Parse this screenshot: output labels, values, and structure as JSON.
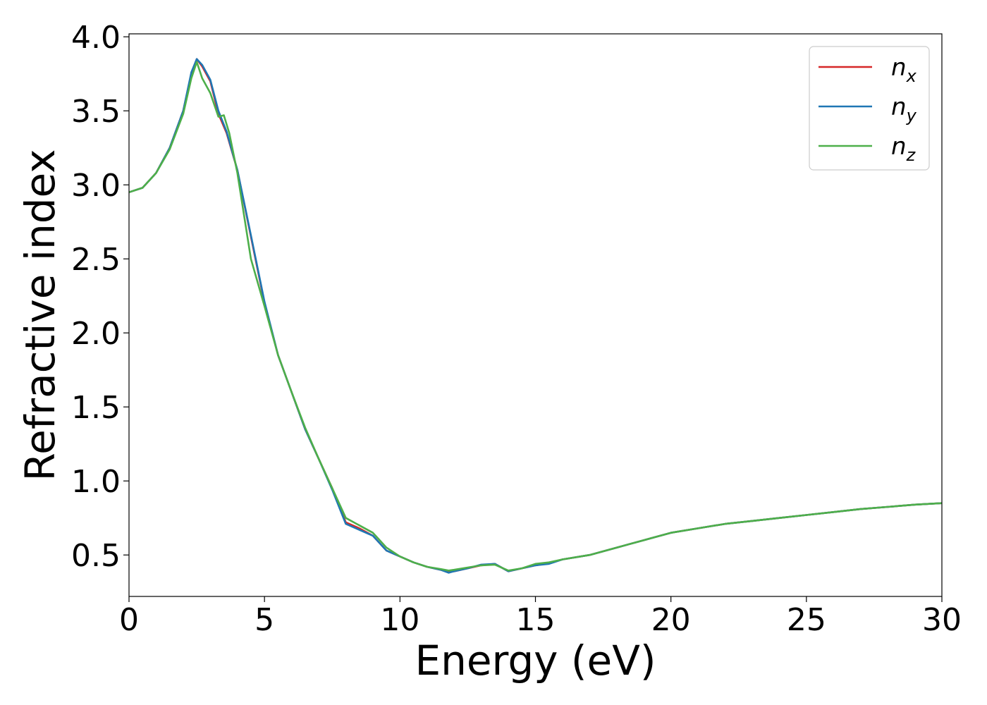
{
  "chart_data": {
    "type": "line",
    "xlabel": "Energy (eV)",
    "ylabel": "Refractive index",
    "xlim": [
      0,
      30
    ],
    "ylim": [
      0.22,
      4.02
    ],
    "xticks": [
      0,
      5,
      10,
      15,
      20,
      25,
      30
    ],
    "xtick_labels": [
      "0",
      "5",
      "10",
      "15",
      "20",
      "25",
      "30"
    ],
    "yticks": [
      0.5,
      1.0,
      1.5,
      2.0,
      2.5,
      3.0,
      3.5,
      4.0
    ],
    "ytick_labels": [
      "0.5",
      "1.0",
      "1.5",
      "2.0",
      "2.5",
      "3.0",
      "3.5",
      "4.0"
    ],
    "grid": false,
    "legend_position": "top-right",
    "series": [
      {
        "name": "n_x",
        "legend_base": "n",
        "legend_sub": "x",
        "color": "#d62728",
        "x": [
          0,
          0.5,
          1.0,
          1.5,
          2.0,
          2.3,
          2.5,
          2.7,
          3.0,
          3.3,
          3.6,
          4.0,
          4.5,
          5.0,
          5.5,
          6.0,
          6.5,
          7.0,
          7.5,
          8.0,
          8.5,
          9.0,
          9.5,
          10.0,
          10.5,
          11.0,
          11.5,
          11.8,
          12.0,
          12.5,
          13.0,
          13.5,
          14.0,
          14.5,
          15.0,
          15.5,
          16.0,
          17.0,
          18.0,
          19.0,
          20.0,
          21.0,
          22.0,
          23.0,
          24.0,
          25.0,
          26.0,
          27.0,
          28.0,
          29.0,
          30.0
        ],
        "y": [
          2.95,
          2.98,
          3.08,
          3.25,
          3.5,
          3.75,
          3.85,
          3.8,
          3.7,
          3.48,
          3.35,
          3.1,
          2.65,
          2.2,
          1.85,
          1.6,
          1.35,
          1.15,
          0.95,
          0.72,
          0.68,
          0.63,
          0.53,
          0.49,
          0.45,
          0.42,
          0.4,
          0.385,
          0.39,
          0.41,
          0.43,
          0.44,
          0.39,
          0.41,
          0.43,
          0.445,
          0.47,
          0.5,
          0.55,
          0.6,
          0.65,
          0.68,
          0.71,
          0.73,
          0.75,
          0.77,
          0.79,
          0.81,
          0.825,
          0.84,
          0.85
        ]
      },
      {
        "name": "n_y",
        "legend_base": "n",
        "legend_sub": "y",
        "color": "#1f77b4",
        "x": [
          0,
          0.5,
          1.0,
          1.5,
          2.0,
          2.3,
          2.5,
          2.7,
          3.0,
          3.3,
          3.6,
          4.0,
          4.5,
          5.0,
          5.5,
          6.0,
          6.5,
          7.0,
          7.5,
          8.0,
          8.5,
          9.0,
          9.5,
          10.0,
          10.5,
          11.0,
          11.5,
          11.8,
          12.0,
          12.5,
          13.0,
          13.5,
          14.0,
          14.5,
          15.0,
          15.5,
          16.0,
          17.0,
          18.0,
          19.0,
          20.0,
          21.0,
          22.0,
          23.0,
          24.0,
          25.0,
          26.0,
          27.0,
          28.0,
          29.0,
          30.0
        ],
        "y": [
          2.95,
          2.98,
          3.08,
          3.25,
          3.5,
          3.76,
          3.85,
          3.81,
          3.71,
          3.5,
          3.36,
          3.1,
          2.66,
          2.21,
          1.85,
          1.6,
          1.35,
          1.15,
          0.94,
          0.71,
          0.67,
          0.63,
          0.53,
          0.49,
          0.45,
          0.42,
          0.4,
          0.38,
          0.39,
          0.41,
          0.435,
          0.44,
          0.39,
          0.41,
          0.43,
          0.44,
          0.47,
          0.5,
          0.55,
          0.6,
          0.65,
          0.68,
          0.71,
          0.73,
          0.75,
          0.77,
          0.79,
          0.81,
          0.825,
          0.84,
          0.85
        ]
      },
      {
        "name": "n_z",
        "legend_base": "n",
        "legend_sub": "z",
        "color": "#4daf4a",
        "x": [
          0,
          0.5,
          1.0,
          1.5,
          2.0,
          2.3,
          2.5,
          2.7,
          3.0,
          3.3,
          3.5,
          3.7,
          4.0,
          4.5,
          5.0,
          5.5,
          6.0,
          6.5,
          7.0,
          7.5,
          8.0,
          8.5,
          9.0,
          9.5,
          10.0,
          10.5,
          11.0,
          11.5,
          11.8,
          12.0,
          12.5,
          13.0,
          13.5,
          14.0,
          14.5,
          15.0,
          15.5,
          16.0,
          17.0,
          18.0,
          19.0,
          20.0,
          21.0,
          22.0,
          23.0,
          24.0,
          25.0,
          26.0,
          27.0,
          28.0,
          29.0,
          30.0
        ],
        "y": [
          2.95,
          2.98,
          3.08,
          3.24,
          3.48,
          3.72,
          3.83,
          3.72,
          3.62,
          3.46,
          3.47,
          3.35,
          3.08,
          2.5,
          2.18,
          1.85,
          1.6,
          1.36,
          1.15,
          0.95,
          0.75,
          0.7,
          0.65,
          0.55,
          0.49,
          0.45,
          0.42,
          0.405,
          0.395,
          0.4,
          0.415,
          0.43,
          0.435,
          0.395,
          0.41,
          0.44,
          0.45,
          0.47,
          0.5,
          0.55,
          0.6,
          0.65,
          0.68,
          0.71,
          0.73,
          0.75,
          0.77,
          0.79,
          0.81,
          0.825,
          0.84,
          0.85
        ]
      }
    ]
  }
}
